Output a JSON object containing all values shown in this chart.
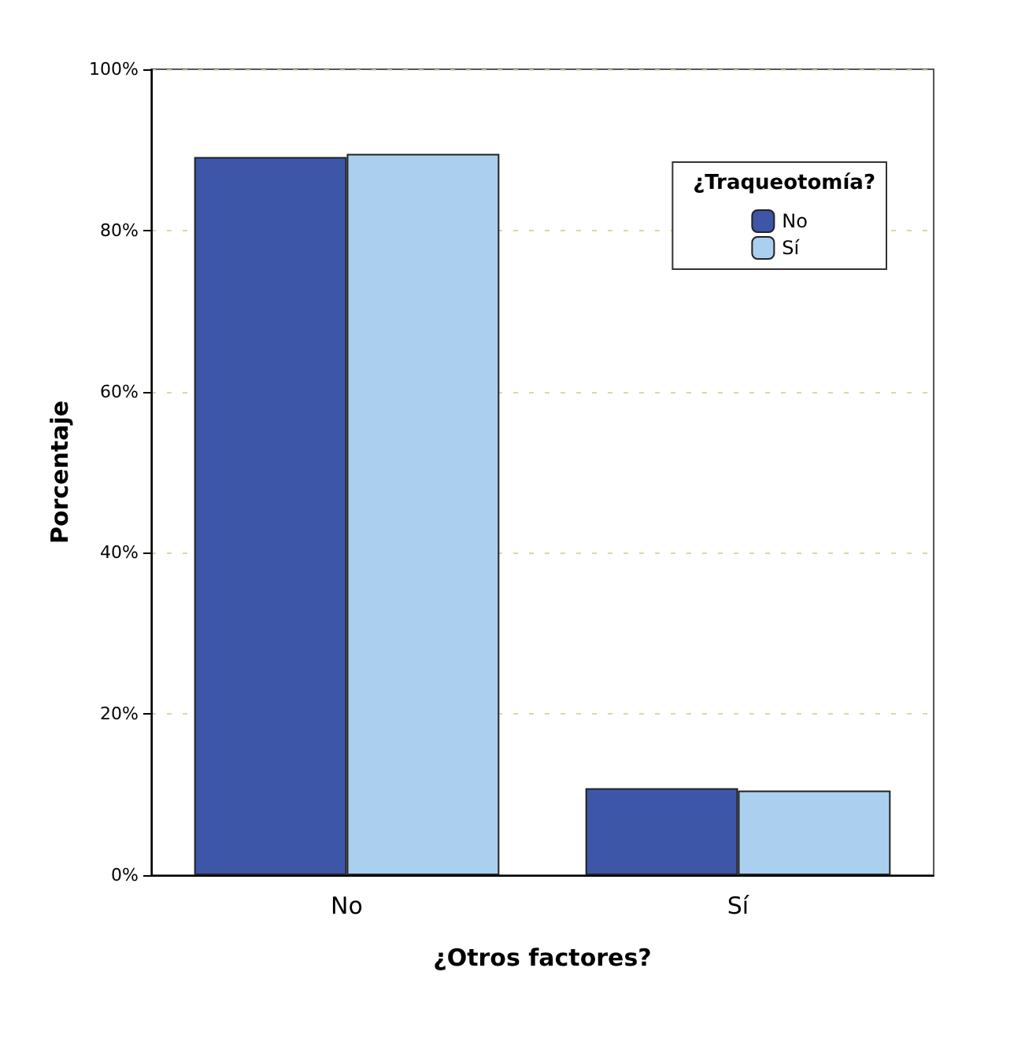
{
  "chart_data": {
    "type": "bar",
    "xlabel": "¿Otros factores?",
    "ylabel": "Porcentaje",
    "legend_title": "¿Traqueotomía?",
    "categories": [
      "No",
      "Sí"
    ],
    "series": [
      {
        "name": "No",
        "color": "#3d56a8",
        "values": [
          89.1,
          10.8
        ]
      },
      {
        "name": "Sí",
        "color": "#abcfee",
        "values": [
          89.5,
          10.5
        ]
      }
    ],
    "ylim": [
      0,
      100
    ],
    "yticks": [
      {
        "value": 0,
        "label": "0%"
      },
      {
        "value": 20,
        "label": "20%"
      },
      {
        "value": 40,
        "label": "40%"
      },
      {
        "value": 60,
        "label": "60%"
      },
      {
        "value": 80,
        "label": "80%"
      },
      {
        "value": 100,
        "label": "100%"
      }
    ],
    "grid": "y",
    "legend": "top right"
  }
}
